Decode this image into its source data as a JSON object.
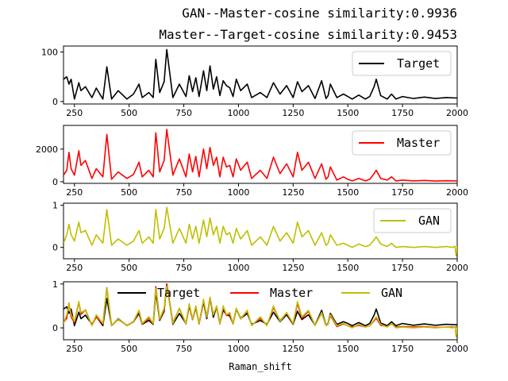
{
  "titles": [
    "GAN--Master-cosine similarity:0.9936",
    "Master--Target-cosine similarity:0.9453"
  ],
  "colors": {
    "Target": "#000000",
    "Master": "#ff0000",
    "GAN": "#bfbf00"
  },
  "chart_data": [
    {
      "type": "line",
      "xlim": [
        200,
        2000
      ],
      "xticks": [
        250,
        500,
        750,
        1000,
        1250,
        1500,
        1750,
        2000
      ],
      "ylim": [
        -5,
        112
      ],
      "yticks": [
        0,
        100
      ],
      "legend": [
        "Target"
      ],
      "legend_location": "upper right",
      "series": [
        {
          "name": "Target",
          "color": "#000000",
          "x": [
            200,
            215,
            225,
            235,
            250,
            270,
            280,
            300,
            330,
            350,
            380,
            398,
            420,
            450,
            490,
            520,
            545,
            560,
            590,
            610,
            622,
            640,
            660,
            672,
            700,
            730,
            760,
            775,
            790,
            805,
            820,
            840,
            855,
            870,
            885,
            900,
            915,
            930,
            945,
            960,
            975,
            990,
            1010,
            1040,
            1060,
            1100,
            1130,
            1160,
            1190,
            1220,
            1250,
            1270,
            1290,
            1320,
            1350,
            1380,
            1400,
            1410,
            1420,
            1450,
            1480,
            1500,
            1520,
            1550,
            1580,
            1600,
            1620,
            1630,
            1650,
            1680,
            1700,
            1720,
            1750,
            1800,
            1850,
            1900,
            1950,
            2000
          ],
          "y": [
            45,
            50,
            35,
            45,
            5,
            38,
            22,
            30,
            8,
            27,
            5,
            70,
            5,
            22,
            5,
            15,
            35,
            8,
            18,
            8,
            85,
            18,
            40,
            105,
            8,
            35,
            10,
            52,
            20,
            48,
            10,
            62,
            22,
            72,
            25,
            50,
            12,
            42,
            32,
            28,
            10,
            45,
            22,
            35,
            8,
            18,
            8,
            38,
            15,
            32,
            8,
            40,
            20,
            32,
            6,
            42,
            6,
            12,
            35,
            8,
            15,
            10,
            5,
            13,
            5,
            10,
            30,
            45,
            12,
            5,
            15,
            5,
            10,
            6,
            9,
            6,
            8,
            7
          ]
        }
      ]
    },
    {
      "type": "line",
      "xlim": [
        200,
        2000
      ],
      "xticks": [
        250,
        500,
        750,
        1000,
        1250,
        1500,
        1750,
        2000
      ],
      "ylim": [
        -100,
        3450
      ],
      "yticks": [
        0,
        2000
      ],
      "legend": [
        "Master"
      ],
      "legend_location": "upper right",
      "series": [
        {
          "name": "Master",
          "color": "#ff0000",
          "x": [
            200,
            215,
            225,
            235,
            250,
            270,
            280,
            300,
            330,
            350,
            380,
            398,
            420,
            450,
            490,
            520,
            545,
            560,
            590,
            610,
            622,
            640,
            660,
            672,
            700,
            730,
            760,
            775,
            790,
            805,
            820,
            840,
            855,
            870,
            885,
            900,
            915,
            930,
            945,
            960,
            975,
            990,
            1010,
            1040,
            1060,
            1100,
            1130,
            1160,
            1190,
            1220,
            1250,
            1270,
            1290,
            1320,
            1350,
            1380,
            1400,
            1410,
            1420,
            1450,
            1480,
            1500,
            1520,
            1550,
            1580,
            1600,
            1620,
            1630,
            1650,
            1680,
            1700,
            1720,
            1750,
            1800,
            1850,
            1900,
            1950,
            2000
          ],
          "y": [
            400,
            700,
            1800,
            800,
            400,
            1900,
            1000,
            1300,
            200,
            800,
            300,
            2900,
            150,
            600,
            200,
            450,
            1200,
            300,
            700,
            300,
            3000,
            600,
            1300,
            3200,
            400,
            1400,
            300,
            1700,
            600,
            1550,
            300,
            2000,
            800,
            2100,
            1000,
            1500,
            300,
            1500,
            900,
            1000,
            300,
            1400,
            700,
            1200,
            200,
            700,
            200,
            1500,
            500,
            1100,
            300,
            1800,
            700,
            1200,
            200,
            1100,
            150,
            300,
            900,
            100,
            300,
            150,
            50,
            200,
            50,
            150,
            500,
            700,
            200,
            100,
            300,
            50,
            100,
            50,
            80,
            40,
            60,
            50
          ]
        }
      ]
    },
    {
      "type": "line",
      "xlim": [
        200,
        2000
      ],
      "xticks": [
        250,
        500,
        750,
        1000,
        1250,
        1500,
        1750,
        2000
      ],
      "ylim": [
        -0.27,
        1.05
      ],
      "yticks": [
        0,
        1
      ],
      "legend": [
        "GAN"
      ],
      "legend_location": "upper right",
      "series": [
        {
          "name": "GAN",
          "color": "#bfbf00",
          "x": [
            200,
            215,
            225,
            235,
            250,
            270,
            280,
            300,
            330,
            350,
            380,
            398,
            420,
            450,
            490,
            520,
            545,
            560,
            590,
            610,
            622,
            640,
            660,
            672,
            700,
            730,
            760,
            775,
            790,
            805,
            820,
            840,
            855,
            870,
            885,
            900,
            915,
            930,
            945,
            960,
            975,
            990,
            1010,
            1040,
            1060,
            1100,
            1130,
            1160,
            1190,
            1220,
            1250,
            1270,
            1290,
            1320,
            1350,
            1380,
            1400,
            1410,
            1420,
            1450,
            1480,
            1500,
            1520,
            1550,
            1580,
            1600,
            1620,
            1630,
            1650,
            1680,
            1700,
            1720,
            1750,
            1800,
            1850,
            1900,
            1950,
            1980,
            1990,
            1995,
            2000
          ],
          "y": [
            0.1,
            0.3,
            0.55,
            0.3,
            0.15,
            0.6,
            0.35,
            0.4,
            0.05,
            0.3,
            0.1,
            0.9,
            0.05,
            0.2,
            0.05,
            0.15,
            0.4,
            0.1,
            0.25,
            0.1,
            0.9,
            0.2,
            0.45,
            0.95,
            0.1,
            0.45,
            0.1,
            0.55,
            0.2,
            0.5,
            0.1,
            0.65,
            0.25,
            0.7,
            0.3,
            0.5,
            0.1,
            0.5,
            0.3,
            0.35,
            0.1,
            0.45,
            0.2,
            0.4,
            0.05,
            0.25,
            0.05,
            0.5,
            0.15,
            0.35,
            0.1,
            0.6,
            0.25,
            0.4,
            0.05,
            0.35,
            0.05,
            0.1,
            0.3,
            0.05,
            0.1,
            0.05,
            0.0,
            0.08,
            0.02,
            0.05,
            0.18,
            0.25,
            0.08,
            0.02,
            0.1,
            0.0,
            0.02,
            0.0,
            0.02,
            0.0,
            0.02,
            0.0,
            0.03,
            -0.2,
            0.02
          ]
        }
      ]
    },
    {
      "type": "line",
      "xlim": [
        200,
        2000
      ],
      "xticks": [
        250,
        500,
        750,
        1000,
        1250,
        1500,
        1750,
        2000
      ],
      "ylim": [
        -0.27,
        1.05
      ],
      "yticks": [
        0,
        1
      ],
      "xlabel": "Raman_shift",
      "legend": [
        "Target",
        "Master",
        "GAN"
      ],
      "legend_location": "upper center",
      "series": [
        {
          "name": "Target",
          "color": "#000000",
          "x": [
            200,
            215,
            225,
            235,
            250,
            270,
            280,
            300,
            330,
            350,
            380,
            398,
            420,
            450,
            490,
            520,
            545,
            560,
            590,
            610,
            622,
            640,
            660,
            672,
            700,
            730,
            760,
            775,
            790,
            805,
            820,
            840,
            855,
            870,
            885,
            900,
            915,
            930,
            945,
            960,
            975,
            990,
            1010,
            1040,
            1060,
            1100,
            1130,
            1160,
            1190,
            1220,
            1250,
            1270,
            1290,
            1320,
            1350,
            1380,
            1400,
            1410,
            1420,
            1450,
            1480,
            1500,
            1520,
            1550,
            1580,
            1600,
            1620,
            1630,
            1650,
            1680,
            1700,
            1720,
            1750,
            1800,
            1850,
            1900,
            1950,
            2000
          ],
          "y": [
            0.43,
            0.48,
            0.33,
            0.43,
            0.05,
            0.36,
            0.21,
            0.29,
            0.08,
            0.26,
            0.05,
            0.67,
            0.05,
            0.21,
            0.05,
            0.14,
            0.33,
            0.08,
            0.17,
            0.08,
            0.81,
            0.17,
            0.38,
            1.0,
            0.08,
            0.33,
            0.1,
            0.5,
            0.19,
            0.46,
            0.1,
            0.59,
            0.21,
            0.69,
            0.24,
            0.48,
            0.11,
            0.4,
            0.3,
            0.27,
            0.1,
            0.43,
            0.21,
            0.33,
            0.08,
            0.17,
            0.08,
            0.36,
            0.14,
            0.3,
            0.08,
            0.38,
            0.19,
            0.3,
            0.06,
            0.4,
            0.06,
            0.11,
            0.33,
            0.08,
            0.14,
            0.1,
            0.05,
            0.12,
            0.05,
            0.1,
            0.29,
            0.43,
            0.11,
            0.05,
            0.14,
            0.05,
            0.1,
            0.06,
            0.09,
            0.06,
            0.08,
            0.07
          ]
        },
        {
          "name": "Master",
          "color": "#ff0000",
          "x": [
            200,
            215,
            225,
            235,
            250,
            270,
            280,
            300,
            330,
            350,
            380,
            398,
            420,
            450,
            490,
            520,
            545,
            560,
            590,
            610,
            622,
            640,
            660,
            672,
            700,
            730,
            760,
            775,
            790,
            805,
            820,
            840,
            855,
            870,
            885,
            900,
            915,
            930,
            945,
            960,
            975,
            990,
            1010,
            1040,
            1060,
            1100,
            1130,
            1160,
            1190,
            1220,
            1250,
            1270,
            1290,
            1320,
            1350,
            1380,
            1400,
            1410,
            1420,
            1450,
            1480,
            1500,
            1520,
            1550,
            1580,
            1600,
            1620,
            1630,
            1650,
            1680,
            1700,
            1720,
            1750,
            1800,
            1850,
            1900,
            1950,
            2000
          ],
          "y": [
            0.12,
            0.22,
            0.56,
            0.25,
            0.12,
            0.59,
            0.31,
            0.41,
            0.06,
            0.25,
            0.09,
            0.91,
            0.05,
            0.19,
            0.06,
            0.14,
            0.38,
            0.09,
            0.22,
            0.09,
            0.94,
            0.19,
            0.41,
            1.0,
            0.12,
            0.44,
            0.09,
            0.53,
            0.19,
            0.48,
            0.09,
            0.63,
            0.25,
            0.66,
            0.31,
            0.47,
            0.09,
            0.47,
            0.28,
            0.31,
            0.09,
            0.44,
            0.22,
            0.38,
            0.06,
            0.22,
            0.06,
            0.47,
            0.16,
            0.34,
            0.09,
            0.56,
            0.22,
            0.38,
            0.06,
            0.34,
            0.05,
            0.09,
            0.28,
            0.03,
            0.09,
            0.05,
            0.02,
            0.06,
            0.02,
            0.05,
            0.16,
            0.22,
            0.06,
            0.03,
            0.09,
            0.02,
            0.03,
            0.02,
            0.03,
            0.01,
            0.02,
            0.02
          ]
        },
        {
          "name": "GAN",
          "color": "#bfbf00",
          "x": [
            200,
            215,
            225,
            235,
            250,
            270,
            280,
            300,
            330,
            350,
            380,
            398,
            420,
            450,
            490,
            520,
            545,
            560,
            590,
            610,
            622,
            640,
            660,
            672,
            700,
            730,
            760,
            775,
            790,
            805,
            820,
            840,
            855,
            870,
            885,
            900,
            915,
            930,
            945,
            960,
            975,
            990,
            1010,
            1040,
            1060,
            1100,
            1130,
            1160,
            1190,
            1220,
            1250,
            1270,
            1290,
            1320,
            1350,
            1380,
            1400,
            1410,
            1420,
            1450,
            1480,
            1500,
            1520,
            1550,
            1580,
            1600,
            1620,
            1630,
            1650,
            1680,
            1700,
            1720,
            1750,
            1800,
            1850,
            1900,
            1950,
            1980,
            1990,
            1995,
            2000
          ],
          "y": [
            0.1,
            0.3,
            0.55,
            0.3,
            0.15,
            0.6,
            0.35,
            0.4,
            0.05,
            0.3,
            0.1,
            0.9,
            0.05,
            0.2,
            0.05,
            0.15,
            0.4,
            0.1,
            0.25,
            0.1,
            0.9,
            0.2,
            0.45,
            0.95,
            0.1,
            0.45,
            0.1,
            0.55,
            0.2,
            0.5,
            0.1,
            0.65,
            0.25,
            0.7,
            0.3,
            0.5,
            0.1,
            0.5,
            0.3,
            0.35,
            0.1,
            0.45,
            0.2,
            0.4,
            0.05,
            0.25,
            0.05,
            0.5,
            0.15,
            0.35,
            0.1,
            0.6,
            0.25,
            0.4,
            0.05,
            0.35,
            0.05,
            0.1,
            0.3,
            0.05,
            0.1,
            0.05,
            0.0,
            0.08,
            0.02,
            0.05,
            0.18,
            0.25,
            0.08,
            0.02,
            0.1,
            0.0,
            0.02,
            0.0,
            0.02,
            0.0,
            0.02,
            0.0,
            0.03,
            -0.2,
            0.02
          ]
        }
      ]
    }
  ]
}
